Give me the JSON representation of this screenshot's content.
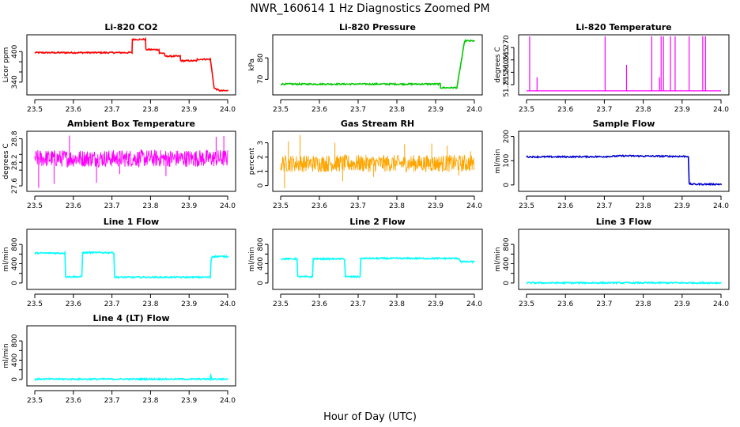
{
  "figure": {
    "title": "NWR_160614  1 Hz Diagnostics Zoomed PM",
    "xlabel": "Hour of Day (UTC)"
  },
  "chart_data": [
    {
      "type": "line",
      "title": "Li-820 CO2",
      "ylabel": "Licor ppm",
      "color": "#ff0000",
      "xlim": [
        23.5,
        24.0
      ],
      "xticks": [
        "23.5",
        "23.6",
        "23.7",
        "23.8",
        "23.9",
        "24.0"
      ],
      "ylim": [
        318,
        430
      ],
      "yticks": [
        340,
        360,
        380,
        400
      ],
      "ytick_labels": [
        "340",
        "",
        "",
        "400"
      ],
      "style": "step",
      "x": [
        23.5,
        23.752,
        23.753,
        23.787,
        23.788,
        23.822,
        23.823,
        23.836,
        23.837,
        23.877,
        23.878,
        23.92,
        23.921,
        23.955,
        23.965,
        23.98,
        24.0
      ],
      "y": [
        398,
        398,
        424,
        424,
        404,
        404,
        397,
        397,
        391,
        391,
        382,
        382,
        385,
        385,
        328,
        323,
        323
      ]
    },
    {
      "type": "line",
      "title": "Li-820 Pressure",
      "ylabel": "kPa",
      "color": "#00c800",
      "xlim": [
        23.5,
        24.0
      ],
      "xticks": [
        "23.5",
        "23.6",
        "23.7",
        "23.8",
        "23.9",
        "24.0"
      ],
      "ylim": [
        63.5,
        90
      ],
      "yticks": [
        70,
        80
      ],
      "ytick_labels": [
        "70",
        "80"
      ],
      "style": "step",
      "x": [
        23.5,
        23.912,
        23.913,
        23.955,
        23.975,
        23.985,
        24.0
      ],
      "y": [
        67.8,
        67.8,
        66.1,
        66.1,
        87.9,
        87.9,
        87.9
      ]
    },
    {
      "type": "line",
      "title": "Li-820 Temperature",
      "ylabel": "degrees C",
      "color": "#ff00ff",
      "xlim": [
        23.5,
        24.0
      ],
      "xticks": [
        "23.5",
        "23.6",
        "23.7",
        "23.8",
        "23.9",
        "24.0"
      ],
      "ylim": [
        51.2515,
        51.2745
      ],
      "yticks": [
        51.255,
        51.26,
        51.265,
        51.27
      ],
      "ytick_labels": [
        "51.255",
        "51.260",
        "51.265",
        "51.270"
      ],
      "style": "spikes",
      "baseline": 51.2525,
      "spikes": [
        {
          "x": 23.508,
          "y": 51.2745
        },
        {
          "x": 23.527,
          "y": 51.258
        },
        {
          "x": 23.702,
          "y": 51.2745
        },
        {
          "x": 23.757,
          "y": 51.263
        },
        {
          "x": 23.822,
          "y": 51.2745
        },
        {
          "x": 23.842,
          "y": 51.258
        },
        {
          "x": 23.846,
          "y": 51.2745
        },
        {
          "x": 23.852,
          "y": 51.2745
        },
        {
          "x": 23.87,
          "y": 51.2745
        },
        {
          "x": 23.882,
          "y": 51.2745
        },
        {
          "x": 23.918,
          "y": 51.2745
        },
        {
          "x": 23.953,
          "y": 51.2745
        },
        {
          "x": 23.96,
          "y": 51.2745
        }
      ]
    },
    {
      "type": "line",
      "title": "Ambient Box Temperature",
      "ylabel": "degrees C",
      "color": "#ff00ff",
      "xlim": [
        23.5,
        24.0
      ],
      "xticks": [
        "23.5",
        "23.6",
        "23.7",
        "23.8",
        "23.9",
        "24.0"
      ],
      "ylim": [
        27.5,
        28.95
      ],
      "yticks": [
        27.6,
        28.0,
        28.2,
        28.4,
        28.8
      ],
      "ytick_labels": [
        "27.6",
        "",
        "28.2",
        "",
        "28.8"
      ],
      "style": "noise",
      "mean": 28.3,
      "amplitude": 0.22,
      "outliers": [
        {
          "x": 23.51,
          "y": 27.55
        },
        {
          "x": 23.55,
          "y": 27.65
        },
        {
          "x": 23.66,
          "y": 27.68
        },
        {
          "x": 23.72,
          "y": 27.9
        },
        {
          "x": 23.59,
          "y": 28.88
        },
        {
          "x": 23.97,
          "y": 28.85
        },
        {
          "x": 23.99,
          "y": 28.87
        },
        {
          "x": 23.84,
          "y": 27.85
        }
      ]
    },
    {
      "type": "line",
      "title": "Gas Stream RH",
      "ylabel": "percent",
      "color": "#ffa500",
      "xlim": [
        23.5,
        24.0
      ],
      "xticks": [
        "23.5",
        "23.6",
        "23.7",
        "23.8",
        "23.9",
        "24.0"
      ],
      "ylim": [
        -0.3,
        3.7
      ],
      "yticks": [
        0,
        1,
        2,
        3
      ],
      "ytick_labels": [
        "0",
        "1",
        "2",
        "3"
      ],
      "style": "noise",
      "mean": 1.55,
      "amplitude": 0.6,
      "outliers": [
        {
          "x": 23.51,
          "y": -0.2
        },
        {
          "x": 23.52,
          "y": 3.1
        },
        {
          "x": 23.55,
          "y": 3.55
        },
        {
          "x": 23.64,
          "y": 3.0
        },
        {
          "x": 23.66,
          "y": 0.3
        },
        {
          "x": 23.74,
          "y": 0.6
        },
        {
          "x": 23.82,
          "y": 2.9
        },
        {
          "x": 23.89,
          "y": 2.95
        },
        {
          "x": 23.93,
          "y": 2.8
        },
        {
          "x": 23.96,
          "y": 0.7
        },
        {
          "x": 23.99,
          "y": 2.4
        }
      ]
    },
    {
      "type": "line",
      "title": "Sample Flow",
      "ylabel": "ml/min",
      "color": "#0000cd",
      "xlim": [
        23.5,
        24.0
      ],
      "xticks": [
        "23.5",
        "23.6",
        "23.7",
        "23.8",
        "23.9",
        "24.0"
      ],
      "ylim": [
        -20,
        215
      ],
      "yticks": [
        0,
        100,
        200
      ],
      "ytick_labels": [
        "0",
        "100",
        "200"
      ],
      "style": "step",
      "x": [
        23.5,
        23.6,
        23.7,
        23.75,
        23.8,
        23.9,
        23.916,
        23.918,
        23.925,
        24.0
      ],
      "y": [
        116,
        116,
        117,
        120,
        119,
        118,
        118,
        5,
        3,
        3
      ]
    },
    {
      "type": "line",
      "title": "Line 1 Flow",
      "ylabel": "ml/min",
      "color": "#00ffff",
      "xlim": [
        23.5,
        24.0
      ],
      "xticks": [
        "23.5",
        "23.6",
        "23.7",
        "23.8",
        "23.9",
        "24.0"
      ],
      "ylim": [
        -100,
        1080
      ],
      "yticks": [
        0,
        200,
        400,
        600,
        800
      ],
      "ytick_labels": [
        "0",
        "",
        "400",
        "",
        "800"
      ],
      "style": "step",
      "x": [
        23.5,
        23.505,
        23.578,
        23.58,
        23.622,
        23.624,
        23.705,
        23.707,
        23.955,
        23.957,
        23.96,
        24.0
      ],
      "y": [
        620,
        620,
        620,
        130,
        130,
        630,
        630,
        120,
        120,
        480,
        550,
        550
      ]
    },
    {
      "type": "line",
      "title": "Line 2 Flow",
      "ylabel": "ml/min",
      "color": "#00ffff",
      "xlim": [
        23.5,
        24.0
      ],
      "xticks": [
        "23.5",
        "23.6",
        "23.7",
        "23.8",
        "23.9",
        "24.0"
      ],
      "ylim": [
        -100,
        1080
      ],
      "yticks": [
        0,
        200,
        400,
        600,
        800
      ],
      "ytick_labels": [
        "0",
        "",
        "400",
        "",
        "800"
      ],
      "style": "step",
      "x": [
        23.5,
        23.542,
        23.544,
        23.582,
        23.584,
        23.665,
        23.667,
        23.705,
        23.707,
        23.96,
        23.965,
        24.0
      ],
      "y": [
        500,
        500,
        130,
        130,
        500,
        500,
        130,
        130,
        510,
        510,
        440,
        440
      ]
    },
    {
      "type": "line",
      "title": "Line 3 Flow",
      "ylabel": "ml/min",
      "color": "#00ffff",
      "xlim": [
        23.5,
        24.0
      ],
      "xticks": [
        "23.5",
        "23.6",
        "23.7",
        "23.8",
        "23.9",
        "24.0"
      ],
      "ylim": [
        -100,
        1080
      ],
      "yticks": [
        0,
        200,
        400,
        600,
        800
      ],
      "ytick_labels": [
        "0",
        "",
        "400",
        "",
        "800"
      ],
      "style": "step",
      "x": [
        23.5,
        24.0
      ],
      "y": [
        3,
        3
      ]
    },
    {
      "type": "line",
      "title": "Line 4 (LT) Flow",
      "ylabel": "ml/min",
      "color": "#00ffff",
      "xlim": [
        23.5,
        24.0
      ],
      "xticks": [
        "23.5",
        "23.6",
        "23.7",
        "23.8",
        "23.9",
        "24.0"
      ],
      "ylim": [
        -100,
        1080
      ],
      "yticks": [
        0,
        200,
        400,
        600,
        800
      ],
      "ytick_labels": [
        "0",
        "",
        "400",
        "",
        "800"
      ],
      "style": "step",
      "x": [
        23.5,
        23.955,
        23.956,
        23.958,
        23.96,
        24.0
      ],
      "y": [
        8,
        8,
        90,
        20,
        8,
        8
      ]
    }
  ]
}
